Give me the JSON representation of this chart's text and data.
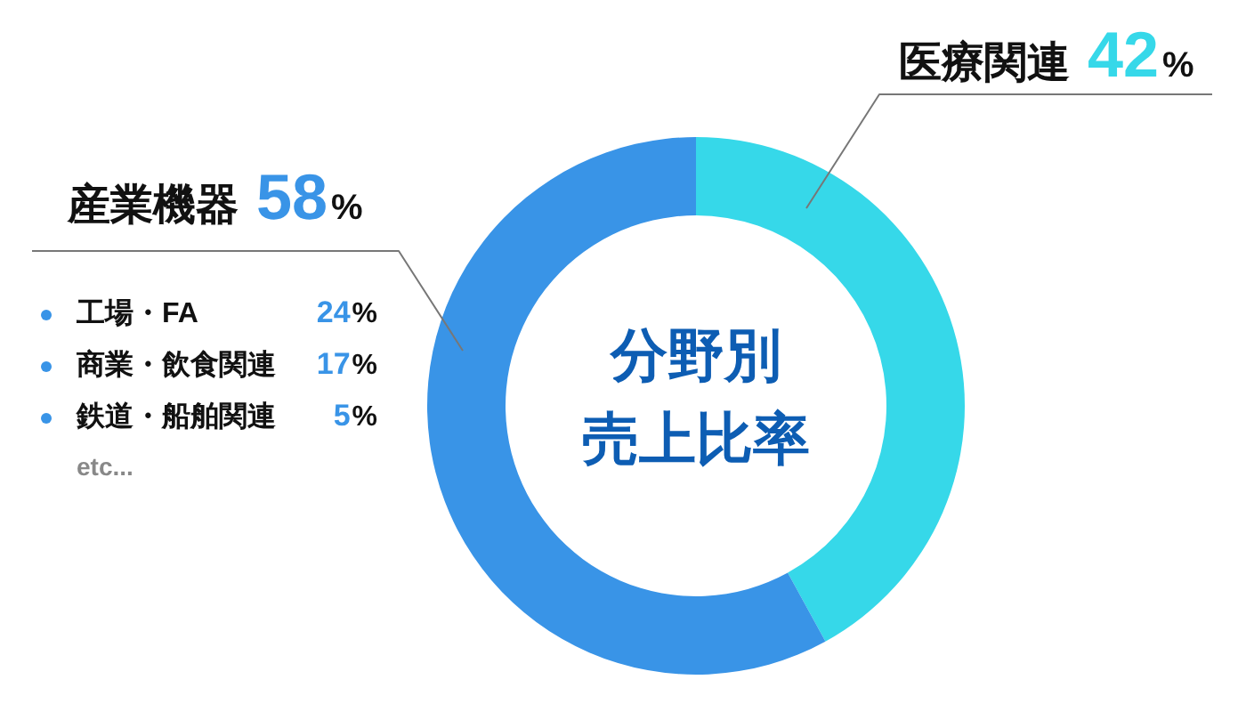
{
  "chart_data": {
    "type": "donut",
    "title": "分野別売上比率",
    "categories": [
      "医療関連",
      "産業機器"
    ],
    "values": [
      42,
      58
    ],
    "colors": [
      "#36d8e9",
      "#3994e7"
    ],
    "value_labels": [
      "42%",
      "58%"
    ],
    "annotations": [
      "工場・FA 24%",
      "商業・飲食関連 17%",
      "鉄道・船舶関連 5%",
      "etc..."
    ]
  }
}
